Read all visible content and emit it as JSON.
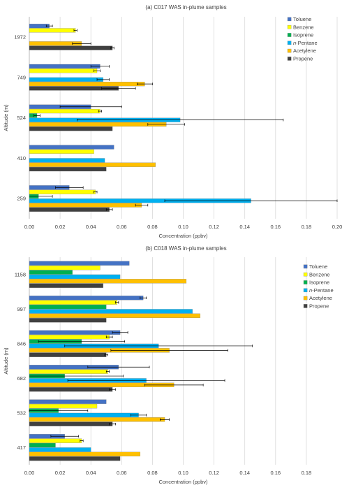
{
  "chart_data": [
    {
      "type": "bar",
      "orientation": "horizontal",
      "title": "(a) C017 WAS in-plume samples",
      "xlabel": "Concentration (ppbv)",
      "ylabel": "Altitude (m)",
      "xlim": [
        0,
        0.2
      ],
      "xticks": [
        "0.00",
        "0.02",
        "0.04",
        "0.06",
        "0.08",
        "0.10",
        "0.12",
        "0.14",
        "0.16",
        "0.18",
        "0.20"
      ],
      "grid": "vertical",
      "legend_position": "top-right",
      "categories": [
        "1972",
        "749",
        "524",
        "410",
        "259"
      ],
      "series": [
        {
          "name": "Toluene",
          "values": [
            0.013,
            0.046,
            0.04,
            0.055,
            0.026
          ],
          "errors": [
            0.002,
            0.006,
            0.02,
            null,
            0.009
          ]
        },
        {
          "name": "Benzene",
          "values": [
            0.03,
            0.044,
            0.046,
            0.042,
            0.043
          ],
          "errors": [
            0.001,
            0.002,
            0.001,
            null,
            0.001
          ]
        },
        {
          "name": "Isoprene",
          "values": [
            null,
            null,
            0.005,
            null,
            0.006
          ],
          "errors": [
            null,
            null,
            0.002,
            null,
            0.009
          ]
        },
        {
          "name": "n-Pentane",
          "values": [
            null,
            0.048,
            0.098,
            0.049,
            0.144
          ],
          "errors": [
            null,
            0.004,
            0.067,
            null,
            0.056
          ]
        },
        {
          "name": "Acetylene",
          "values": [
            0.034,
            0.075,
            0.089,
            0.082,
            0.073
          ],
          "errors": [
            0.006,
            0.005,
            0.012,
            null,
            0.004
          ]
        },
        {
          "name": "Propene",
          "values": [
            0.054,
            0.058,
            0.054,
            0.05,
            0.052
          ],
          "errors": [
            0.001,
            0.011,
            null,
            null,
            0.002
          ]
        }
      ]
    },
    {
      "type": "bar",
      "orientation": "horizontal",
      "title": "(b) C018 WAS in-plume samples",
      "xlabel": "Concentration (ppbv)",
      "ylabel": "Altitude (m)",
      "xlim": [
        0,
        0.2
      ],
      "xticks": [
        "0.00",
        "0.02",
        "0.04",
        "0.06",
        "0.08",
        "0.10",
        "0.12",
        "0.14",
        "0.16",
        "0.18"
      ],
      "grid": "vertical",
      "legend_position": "top-right",
      "categories": [
        "1158",
        "997",
        "846",
        "682",
        "532",
        "417"
      ],
      "series": [
        {
          "name": "Toluene",
          "values": [
            0.065,
            0.074,
            0.059,
            0.058,
            0.05,
            0.023
          ],
          "errors": [
            null,
            0.002,
            0.005,
            0.02,
            null,
            0.009
          ]
        },
        {
          "name": "Benzene",
          "values": [
            0.046,
            0.057,
            0.052,
            0.051,
            0.044,
            0.034
          ],
          "errors": [
            null,
            0.001,
            0.002,
            0.001,
            null,
            0.001
          ]
        },
        {
          "name": "Isoprene",
          "values": [
            0.028,
            0.05,
            0.034,
            0.023,
            0.019,
            0.017
          ],
          "errors": [
            null,
            null,
            0.028,
            0.038,
            0.019,
            null
          ]
        },
        {
          "name": "n-Pentane",
          "values": [
            0.059,
            0.106,
            0.084,
            0.076,
            0.071,
            0.04
          ],
          "errors": [
            null,
            null,
            0.061,
            0.051,
            0.005,
            null
          ]
        },
        {
          "name": "Acetylene",
          "values": [
            0.102,
            0.111,
            0.091,
            0.094,
            0.088,
            0.072
          ],
          "errors": [
            null,
            null,
            0.038,
            0.019,
            0.003,
            null
          ]
        },
        {
          "name": "Propene",
          "values": [
            0.048,
            0.05,
            0.05,
            0.054,
            0.054,
            0.059
          ],
          "errors": [
            null,
            null,
            0.001,
            0.002,
            0.002,
            null
          ]
        }
      ]
    }
  ],
  "series_labels": [
    {
      "name_before": "",
      "name_italic": "",
      "name_after": "Toluene"
    },
    {
      "name_before": "",
      "name_italic": "",
      "name_after": "Benzene"
    },
    {
      "name_before": "",
      "name_italic": "",
      "name_after": "Isoprene"
    },
    {
      "name_before": "",
      "name_italic": "n",
      "name_after": "-Pentane"
    },
    {
      "name_before": "",
      "name_italic": "",
      "name_after": "Acetylene"
    },
    {
      "name_before": "",
      "name_italic": "",
      "name_after": "Propene"
    }
  ],
  "colors": {
    "Toluene": "#4472C4",
    "Benzene": "#FFFF00",
    "Isoprene": "#00B050",
    "n-Pentane": "#00B0F0",
    "Acetylene": "#FFC000",
    "Propene": "#404040",
    "grid": "#D9D9D9",
    "axis": "#A6A6A6",
    "text": "#404040",
    "bar_outline": "#7F7F7F"
  }
}
